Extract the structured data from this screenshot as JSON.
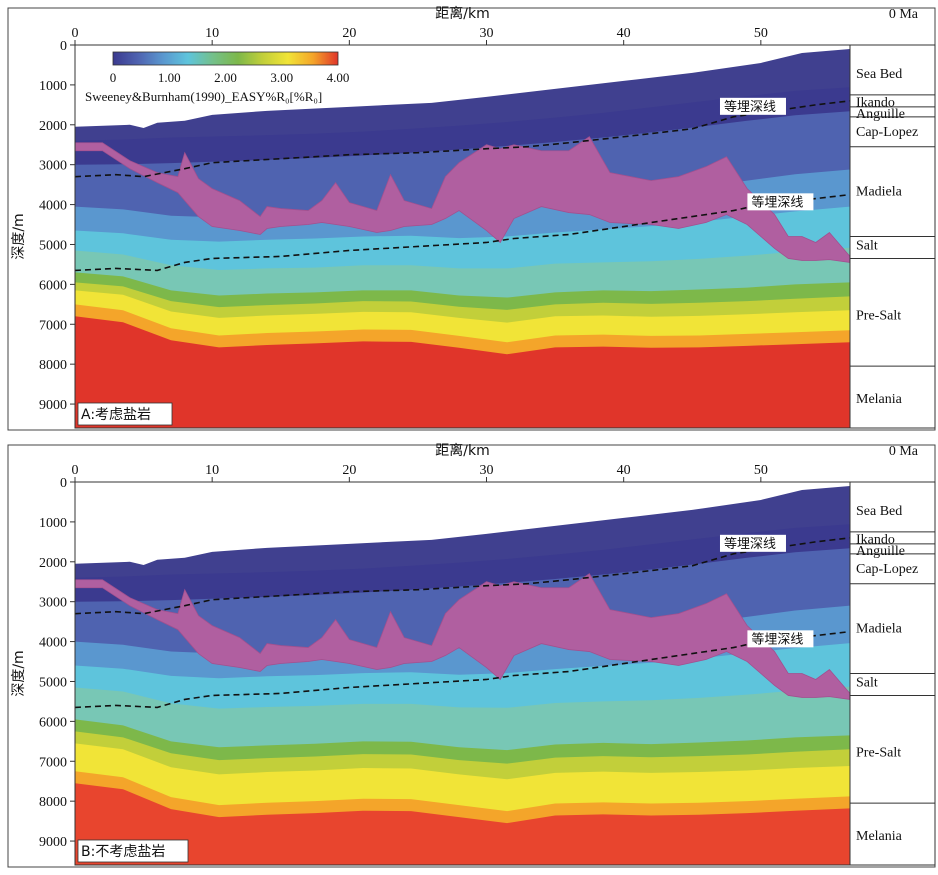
{
  "chart_data": [
    {
      "type": "heatmap",
      "panel_label": "A:考虑盐岩",
      "title": "",
      "xlabel": "距离/km",
      "ylabel": "深度/m",
      "age_label": "0 Ma",
      "xlim": [
        0,
        56.5
      ],
      "ylim": [
        0,
        9600
      ],
      "x_ticks": [
        "0",
        "10",
        "20",
        "30",
        "40",
        "50"
      ],
      "y_ticks": [
        "0",
        "1000",
        "2000",
        "3000",
        "4000",
        "5000",
        "6000",
        "7000",
        "8000",
        "9000"
      ],
      "colorbar": {
        "title": "Sweeney&Burnham(1990)_EASY%R₀[%R₀]",
        "ticks": [
          "0",
          "1.00",
          "2.00",
          "3.00",
          "4.00"
        ],
        "range": [
          0,
          4
        ],
        "colors": [
          "#3b3a8f",
          "#4f63b0",
          "#5a97cf",
          "#5ec4dc",
          "#74c08a",
          "#7db84a",
          "#c2cf3a",
          "#f1e437",
          "#f4a52a",
          "#e0352a"
        ]
      },
      "formations": [
        {
          "name": "Sea Bed",
          "label_depth": 700
        },
        {
          "name": "Ikando",
          "label_depth": 1420
        },
        {
          "name": "Anguille",
          "label_depth": 1700
        },
        {
          "name": "Cap-Lopez",
          "label_depth": 2150
        },
        {
          "name": "Madiela",
          "label_depth": 3650
        },
        {
          "name": "Salt",
          "label_depth": 5000
        },
        {
          "name": "Pre-Salt",
          "label_depth": 6750
        },
        {
          "name": "Melania",
          "label_depth": 8850
        }
      ],
      "formation_boundaries": [
        1250,
        1550,
        1800,
        2550,
        4800,
        5350,
        8050
      ],
      "top_surface": {
        "x": [
          0,
          4,
          5,
          6,
          8,
          10,
          14,
          20,
          26,
          30,
          35,
          40,
          45,
          50,
          53,
          56.5
        ],
        "depth": [
          2050,
          2000,
          2080,
          1950,
          1900,
          1750,
          1650,
          1550,
          1450,
          1300,
          1100,
          900,
          700,
          450,
          200,
          100
        ]
      },
      "vr_bands": [
        {
          "value": 0.3,
          "depth": [
            2400,
            2370,
            2320,
            2290,
            2260,
            2220,
            2170,
            2100,
            2020,
            1930,
            1820,
            1700,
            1560,
            1420,
            1280,
            1150,
            1060
          ]
        },
        {
          "value": 0.6,
          "depth": [
            3000,
            2990,
            2960,
            2920,
            2880,
            2830,
            2770,
            2700,
            2620,
            2530,
            2430,
            2320,
            2190,
            2050,
            1900,
            1760,
            1660
          ]
        },
        {
          "value": 1.0,
          "depth": [
            4050,
            4120,
            4280,
            4320,
            4300,
            4260,
            4200,
            4130,
            4060,
            4000,
            3920,
            3820,
            3700,
            3560,
            3400,
            3240,
            3120
          ]
        },
        {
          "value": 1.4,
          "depth": [
            4650,
            4720,
            4880,
            4930,
            4880,
            4850,
            4800,
            4780,
            4840,
            4800,
            4700,
            4620,
            4540,
            4430,
            4300,
            4170,
            4050
          ]
        },
        {
          "value": 1.8,
          "depth": [
            5150,
            5250,
            5520,
            5640,
            5600,
            5580,
            5520,
            5520,
            5600,
            5600,
            5480,
            5450,
            5420,
            5360,
            5280,
            5180,
            5080
          ]
        },
        {
          "value": 2.4,
          "depth": [
            5700,
            5800,
            6150,
            6280,
            6230,
            6200,
            6150,
            6150,
            6280,
            6330,
            6200,
            6150,
            6170,
            6130,
            6080,
            6000,
            5950
          ]
        },
        {
          "value": 2.8,
          "depth": [
            5950,
            6050,
            6420,
            6570,
            6520,
            6480,
            6420,
            6430,
            6560,
            6640,
            6500,
            6460,
            6490,
            6460,
            6420,
            6360,
            6300
          ]
        },
        {
          "value": 3.3,
          "depth": [
            6150,
            6260,
            6680,
            6840,
            6780,
            6740,
            6690,
            6700,
            6840,
            6960,
            6800,
            6780,
            6810,
            6790,
            6750,
            6700,
            6650
          ]
        },
        {
          "value": 4.0,
          "depth": [
            6500,
            6650,
            7100,
            7280,
            7220,
            7180,
            7130,
            7140,
            7290,
            7450,
            7280,
            7260,
            7290,
            7280,
            7240,
            7200,
            7150
          ]
        }
      ],
      "vr_band_x": [
        0,
        3.5,
        7,
        10.5,
        14,
        17.5,
        21,
        24.5,
        28,
        31.5,
        35,
        38.5,
        42,
        45.5,
        49,
        52.5,
        56.5
      ],
      "salt_body": {
        "x": [
          0,
          2,
          4,
          6,
          7.5,
          8,
          9,
          10,
          12,
          13.5,
          14,
          15,
          17,
          18,
          19,
          20,
          22,
          23,
          24,
          26,
          27,
          28,
          30,
          31,
          32,
          34,
          36,
          37.5,
          39,
          42,
          44,
          46,
          47.5,
          49,
          51,
          52,
          53,
          54,
          55,
          56.5
        ],
        "top": [
          2450,
          2450,
          2900,
          3200,
          3300,
          2700,
          3350,
          3600,
          3900,
          4300,
          4050,
          4100,
          4150,
          3900,
          3450,
          3950,
          4150,
          3250,
          3900,
          4100,
          3300,
          2950,
          2500,
          2600,
          2500,
          2650,
          2650,
          2300,
          3200,
          3400,
          3300,
          3050,
          2800,
          3600,
          4250,
          4800,
          4800,
          4950,
          4700,
          5300
        ],
        "bottom": [
          2650,
          2650,
          3100,
          3450,
          3700,
          3900,
          4300,
          4550,
          4650,
          4750,
          4600,
          4550,
          4500,
          4450,
          4500,
          4550,
          4700,
          4650,
          4550,
          4500,
          4350,
          4150,
          4650,
          4950,
          4350,
          4050,
          4200,
          4250,
          4450,
          4500,
          4600,
          4450,
          4250,
          4500,
          5100,
          5350,
          5400,
          5400,
          5380,
          5450
        ]
      },
      "isochrone_label": "等埋深线",
      "isochrone_upper": {
        "x": [
          0,
          3,
          5,
          8,
          10,
          15,
          20,
          25,
          30,
          33,
          36,
          40,
          45,
          48,
          50,
          54,
          56.5
        ],
        "depth": [
          3300,
          3250,
          3300,
          3100,
          2950,
          2850,
          2750,
          2700,
          2600,
          2550,
          2450,
          2300,
          2100,
          1800,
          1700,
          1500,
          1400
        ]
      },
      "isochrone_lower": {
        "x": [
          0,
          3,
          6,
          8,
          10,
          15,
          20,
          25,
          30,
          32,
          36,
          40,
          45,
          48,
          50,
          54,
          56.5
        ],
        "depth": [
          5650,
          5600,
          5650,
          5450,
          5350,
          5300,
          5150,
          5050,
          4950,
          4850,
          4750,
          4550,
          4300,
          4150,
          4000,
          3850,
          3750
        ]
      },
      "upper_label_x": 49.5,
      "lower_label_x": 51.5
    },
    {
      "type": "heatmap",
      "panel_label": "B:不考虑盐岩",
      "title": "",
      "xlabel": "距离/km",
      "ylabel": "深度/m",
      "age_label": "0 Ma",
      "xlim": [
        0,
        56.5
      ],
      "ylim": [
        0,
        9600
      ],
      "x_ticks": [
        "0",
        "10",
        "20",
        "30",
        "40",
        "50"
      ],
      "y_ticks": [
        "0",
        "1000",
        "2000",
        "3000",
        "4000",
        "5000",
        "6000",
        "7000",
        "8000",
        "9000"
      ],
      "formations": [
        {
          "name": "Sea Bed",
          "label_depth": 700
        },
        {
          "name": "Ikando",
          "label_depth": 1420
        },
        {
          "name": "Anguille",
          "label_depth": 1700
        },
        {
          "name": "Cap-Lopez",
          "label_depth": 2150
        },
        {
          "name": "Madiela",
          "label_depth": 3650
        },
        {
          "name": "Salt",
          "label_depth": 5000
        },
        {
          "name": "Pre-Salt",
          "label_depth": 6750
        },
        {
          "name": "Melania",
          "label_depth": 8850
        }
      ],
      "formation_boundaries": [
        1250,
        1550,
        1800,
        2550,
        4800,
        5350,
        8050
      ],
      "top_surface": {
        "x": [
          0,
          4,
          5,
          6,
          8,
          10,
          14,
          20,
          26,
          30,
          35,
          40,
          45,
          50,
          53,
          56.5
        ],
        "depth": [
          2050,
          2000,
          2080,
          1950,
          1900,
          1750,
          1650,
          1550,
          1450,
          1300,
          1100,
          900,
          700,
          450,
          200,
          100
        ]
      },
      "vr_bands": [
        {
          "value": 0.3,
          "depth": [
            2400,
            2370,
            2320,
            2290,
            2260,
            2220,
            2170,
            2100,
            2020,
            1930,
            1820,
            1700,
            1560,
            1420,
            1280,
            1150,
            1060
          ]
        },
        {
          "value": 0.6,
          "depth": [
            3000,
            2990,
            2960,
            2920,
            2880,
            2830,
            2770,
            2700,
            2620,
            2530,
            2430,
            2320,
            2190,
            2050,
            1900,
            1760,
            1660
          ]
        },
        {
          "value": 1.0,
          "depth": [
            4000,
            4080,
            4250,
            4300,
            4280,
            4240,
            4180,
            4120,
            4050,
            3980,
            3900,
            3800,
            3680,
            3540,
            3380,
            3220,
            3100
          ]
        },
        {
          "value": 1.4,
          "depth": [
            4600,
            4680,
            4860,
            4920,
            4870,
            4840,
            4790,
            4770,
            4830,
            4790,
            4690,
            4610,
            4530,
            4420,
            4290,
            4160,
            4040
          ]
        },
        {
          "value": 1.8,
          "depth": [
            5150,
            5250,
            5550,
            5680,
            5640,
            5610,
            5560,
            5560,
            5650,
            5660,
            5540,
            5500,
            5470,
            5410,
            5330,
            5230,
            5130
          ]
        },
        {
          "value": 2.4,
          "depth": [
            5950,
            6100,
            6500,
            6650,
            6600,
            6560,
            6500,
            6510,
            6650,
            6720,
            6580,
            6540,
            6570,
            6530,
            6480,
            6400,
            6350
          ]
        },
        {
          "value": 2.8,
          "depth": [
            6250,
            6400,
            6800,
            6970,
            6920,
            6880,
            6820,
            6830,
            6970,
            7060,
            6910,
            6870,
            6900,
            6870,
            6830,
            6760,
            6700
          ]
        },
        {
          "value": 3.3,
          "depth": [
            6550,
            6700,
            7150,
            7330,
            7270,
            7230,
            7170,
            7180,
            7330,
            7450,
            7290,
            7260,
            7290,
            7270,
            7230,
            7170,
            7120
          ]
        },
        {
          "value": 4.0,
          "depth": [
            7250,
            7400,
            7900,
            8100,
            8040,
            8000,
            7940,
            7950,
            8100,
            8250,
            8060,
            8030,
            8060,
            8040,
            8000,
            7940,
            7880
          ]
        }
      ],
      "vr_band_x": [
        0,
        3.5,
        7,
        10.5,
        14,
        17.5,
        21,
        24.5,
        28,
        31.5,
        35,
        38.5,
        42,
        45.5,
        49,
        52.5,
        56.5
      ],
      "salt_body": {
        "x": [
          0,
          2,
          4,
          6,
          7.5,
          8,
          9,
          10,
          12,
          13.5,
          14,
          15,
          17,
          18,
          19,
          20,
          22,
          23,
          24,
          26,
          27,
          28,
          30,
          31,
          32,
          34,
          36,
          37.5,
          39,
          42,
          44,
          46,
          47.5,
          49,
          51,
          52,
          53,
          54,
          55,
          56.5
        ],
        "top": [
          2450,
          2450,
          2900,
          3200,
          3300,
          2700,
          3350,
          3600,
          3900,
          4300,
          4050,
          4100,
          4150,
          3900,
          3450,
          3950,
          4150,
          3250,
          3900,
          4100,
          3300,
          2950,
          2500,
          2600,
          2500,
          2650,
          2650,
          2300,
          3200,
          3400,
          3300,
          3050,
          2800,
          3600,
          4250,
          4800,
          4800,
          4950,
          4700,
          5300
        ],
        "bottom": [
          2650,
          2650,
          3100,
          3450,
          3700,
          3900,
          4300,
          4550,
          4650,
          4750,
          4600,
          4550,
          4500,
          4450,
          4500,
          4550,
          4700,
          4650,
          4550,
          4500,
          4350,
          4150,
          4650,
          4950,
          4350,
          4050,
          4200,
          4250,
          4450,
          4500,
          4600,
          4450,
          4250,
          4500,
          5100,
          5350,
          5400,
          5400,
          5380,
          5450
        ]
      },
      "isochrone_label": "等埋深线",
      "isochrone_upper": {
        "x": [
          0,
          3,
          5,
          8,
          10,
          15,
          20,
          25,
          30,
          33,
          36,
          40,
          45,
          48,
          50,
          54,
          56.5
        ],
        "depth": [
          3300,
          3250,
          3300,
          3100,
          2950,
          2850,
          2750,
          2700,
          2600,
          2550,
          2450,
          2300,
          2100,
          1800,
          1700,
          1500,
          1400
        ]
      },
      "isochrone_lower": {
        "x": [
          0,
          3,
          6,
          8,
          10,
          15,
          20,
          25,
          30,
          32,
          36,
          40,
          45,
          48,
          50,
          54,
          56.5
        ],
        "depth": [
          5650,
          5600,
          5650,
          5450,
          5350,
          5300,
          5150,
          5050,
          4950,
          4850,
          4750,
          4550,
          4300,
          4150,
          4000,
          3850,
          3750
        ]
      },
      "upper_label_x": 49.5,
      "lower_label_x": 51.5
    }
  ]
}
